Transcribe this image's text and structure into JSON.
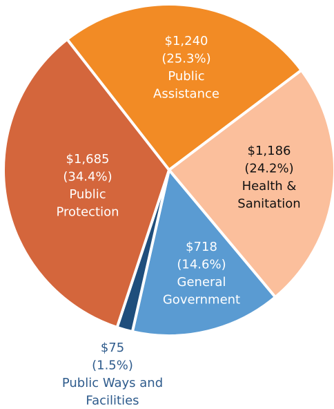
{
  "chart_data": {
    "type": "pie",
    "categories": [
      "Public Assistance",
      "Health & Sanitation",
      "General Government",
      "Public Ways and Facilities",
      "Public Protection"
    ],
    "values": [
      1240,
      1186,
      718,
      75,
      1685
    ],
    "value_labels": [
      "$1,240",
      "$1,186",
      "$718",
      "$75",
      "$1,685"
    ],
    "percent_labels": [
      "(25.3%)",
      "(24.2%)",
      "(14.6%)",
      "(1.5%)",
      "(34.4%)"
    ],
    "colors": [
      "#f28b25",
      "#fbbf9c",
      "#5a9bd2",
      "#1f4e7c",
      "#d4663c"
    ]
  }
}
